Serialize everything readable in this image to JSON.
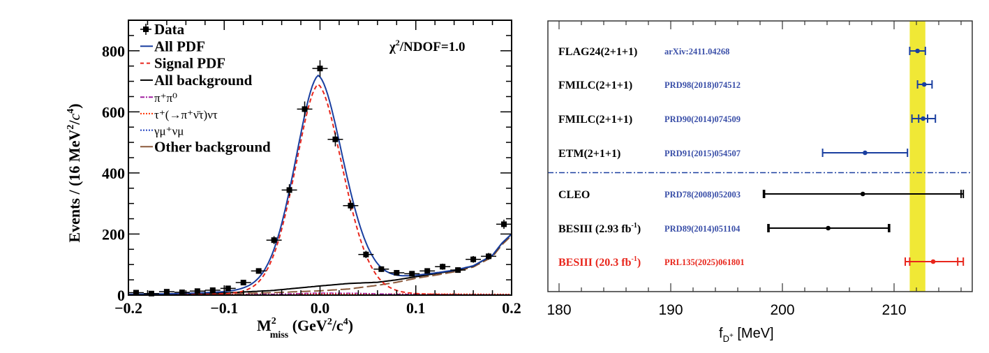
{
  "chart_data": [
    {
      "type": "scatter",
      "title": "",
      "xlabel": "M²miss (GeV²/c⁴)",
      "xlabel_parts": {
        "main": "M",
        "sup": "2",
        "sub": "miss",
        "rest": " (GeV",
        "rest_sup": "2",
        "rest_tail": "/c",
        "rest_tail_sup": "4",
        "close": ")"
      },
      "ylabel": "Events / (16 MeV²/c⁴)",
      "ylabel_parts": {
        "main": "Events / (16 MeV",
        "sup": "2",
        "mid": "/",
        "italic": "c",
        "sup2": "4",
        "close": ")"
      },
      "xlim": [
        -0.2,
        0.2
      ],
      "ylim": [
        0,
        900
      ],
      "x_ticks": [
        -0.2,
        -0.1,
        0.0,
        0.1,
        0.2
      ],
      "x_tick_labels": [
        "−0.2",
        "−0.1",
        "0.0",
        "0.1",
        "0.2"
      ],
      "y_ticks": [
        0,
        200,
        400,
        600,
        800
      ],
      "y_tick_labels": [
        "0",
        "200",
        "400",
        "600",
        "800"
      ],
      "annotation": "χ²/NDOF=1.0",
      "annotation_parts": {
        "main": "χ",
        "sup": "2",
        "rest": "/NDOF=1.0"
      },
      "legend_position": "top-left",
      "legend": [
        {
          "label": "Data",
          "style": "data",
          "color": "#000000"
        },
        {
          "label": "All PDF",
          "style": "solid",
          "color": "#1a3fa0"
        },
        {
          "label": "Signal PDF",
          "style": "dashed",
          "color": "#e8261c"
        },
        {
          "label": "All background",
          "style": "solid",
          "color": "#000000"
        },
        {
          "label": "π⁺π⁰",
          "style": "dashdot",
          "color": "#a020a0"
        },
        {
          "label": "τ⁺(→π⁺ν̄τ)ντ",
          "style": "dotted",
          "color": "#ff3300"
        },
        {
          "label": "γμ⁺νμ",
          "style": "dotted",
          "color": "#2040c0"
        },
        {
          "label": "Other background",
          "style": "longdash",
          "color": "#8b5a3c"
        }
      ],
      "bin_width": 0.016,
      "data_points": {
        "x": [
          -0.192,
          -0.176,
          -0.16,
          -0.144,
          -0.128,
          -0.112,
          -0.096,
          -0.08,
          -0.064,
          -0.048,
          -0.032,
          -0.016,
          0.0,
          0.016,
          0.032,
          0.048,
          0.064,
          0.08,
          0.096,
          0.112,
          0.128,
          0.144,
          0.16,
          0.176,
          0.192
        ],
        "y": [
          8,
          5,
          11,
          9,
          13,
          16,
          22,
          41,
          79,
          180,
          344,
          609,
          742,
          510,
          293,
          133,
          85,
          73,
          70,
          79,
          93,
          82,
          117,
          127,
          232
        ],
        "yerr": [
          3,
          2,
          3,
          3,
          4,
          4,
          5,
          7,
          9,
          13,
          19,
          25,
          27,
          23,
          17,
          12,
          9,
          9,
          8,
          9,
          10,
          9,
          11,
          11,
          15
        ]
      },
      "curves": {
        "signal_params": {
          "amplitude": 690,
          "mean": -0.002,
          "sigma_left": 0.026,
          "sigma_right": 0.028,
          "tail": 0.6
        },
        "all_background": {
          "x": [
            -0.2,
            -0.15,
            -0.1,
            -0.05,
            0.0,
            0.03,
            0.06,
            0.08,
            0.1,
            0.12,
            0.14,
            0.16,
            0.18,
            0.19,
            0.2
          ],
          "y": [
            2,
            4,
            7,
            15,
            30,
            38,
            42,
            50,
            60,
            70,
            80,
            95,
            130,
            170,
            200
          ]
        },
        "other_background": {
          "x": [
            -0.2,
            -0.15,
            -0.1,
            -0.05,
            0.0,
            0.03,
            0.06,
            0.08,
            0.1,
            0.12,
            0.14,
            0.16,
            0.18,
            0.19,
            0.2
          ],
          "y": [
            1,
            2,
            4,
            8,
            14,
            20,
            32,
            42,
            55,
            65,
            76,
            92,
            125,
            165,
            195
          ]
        },
        "pipi0": {
          "x": [
            -0.2,
            -0.1,
            -0.05,
            0.0,
            0.04,
            0.08,
            0.12,
            0.2
          ],
          "y": [
            0,
            1,
            3,
            7,
            6,
            3,
            2,
            1
          ]
        },
        "taunu": {
          "x": [
            -0.2,
            -0.1,
            0.0,
            0.1,
            0.2
          ],
          "y": [
            2,
            3,
            4,
            4,
            3
          ]
        },
        "gammamunu": {
          "x": [
            -0.2,
            -0.1,
            0.0,
            0.1,
            0.2
          ],
          "y": [
            1,
            1,
            1,
            1,
            1
          ]
        }
      }
    },
    {
      "type": "errorbar",
      "title": "",
      "xlabel": "f_D⁺ [MeV]",
      "xlabel_parts": {
        "main": "f",
        "sub": "D",
        "subsup": "+",
        "rest": " [MeV]"
      },
      "ylabel": "",
      "xlim": [
        179,
        217
      ],
      "x_ticks": [
        180,
        190,
        200,
        210
      ],
      "x_tick_labels": [
        "180",
        "190",
        "200",
        "210"
      ],
      "band": {
        "low": 211.4,
        "high": 212.8,
        "color": "#f0e836"
      },
      "separator_after_index": 3,
      "separator_color": "#1a3fa0",
      "entries": [
        {
          "label": "FLAG24(2+1+1)",
          "ref": "arXiv:2411.04268",
          "value": 212.1,
          "stat_low": 211.4,
          "stat_high": 212.8,
          "tot_low": 211.4,
          "tot_high": 212.8,
          "color": "#1a3fa0",
          "label_color": "#000000",
          "ref_color": "#3a4fa8"
        },
        {
          "label": "FMILC(2+1+1)",
          "ref": "PRD98(2018)074512",
          "value": 212.7,
          "stat_low": 212.1,
          "stat_high": 213.4,
          "tot_low": 212.1,
          "tot_high": 213.4,
          "color": "#1a3fa0",
          "label_color": "#000000",
          "ref_color": "#3a4fa8"
        },
        {
          "label": "FMILC(2+1+1)",
          "ref": "PRD90(2014)074509",
          "value": 212.6,
          "stat_low": 212.2,
          "stat_high": 213.0,
          "tot_low": 211.6,
          "tot_high": 213.7,
          "color": "#1a3fa0",
          "label_color": "#000000",
          "ref_color": "#3a4fa8"
        },
        {
          "label": "ETM(2+1+1)",
          "ref": "PRD91(2015)054507",
          "value": 207.4,
          "stat_low": 203.6,
          "stat_high": 211.2,
          "tot_low": 203.6,
          "tot_high": 211.2,
          "color": "#1a3fa0",
          "label_color": "#000000",
          "ref_color": "#3a4fa8"
        },
        {
          "label": "CLEO",
          "ref": "PRD78(2008)052003",
          "value": 207.2,
          "stat_low": 198.4,
          "stat_high": 216.0,
          "tot_low": 198.3,
          "tot_high": 216.2,
          "color": "#000000",
          "label_color": "#000000",
          "ref_color": "#3a4fa8"
        },
        {
          "label": "BESIII (2.93 fb⁻¹)",
          "label_main": "BESIII (2.93 fb",
          "label_sup": "-1",
          "label_close": ")",
          "ref": "PRD89(2014)051104",
          "value": 204.1,
          "stat_low": 198.8,
          "stat_high": 209.5,
          "tot_low": 198.7,
          "tot_high": 209.6,
          "color": "#000000",
          "label_color": "#000000",
          "ref_color": "#3a4fa8"
        },
        {
          "label": "BESIII (20.3 fb⁻¹)",
          "label_main": "BESIII (20.3 fb",
          "label_sup": "-1",
          "label_close": ")",
          "ref": "PRL135(2025)061801",
          "value": 213.5,
          "stat_low": 211.4,
          "stat_high": 215.7,
          "tot_low": 211.0,
          "tot_high": 216.2,
          "color": "#e8261c",
          "label_color": "#e8261c",
          "ref_color": "#e8261c"
        }
      ]
    }
  ]
}
